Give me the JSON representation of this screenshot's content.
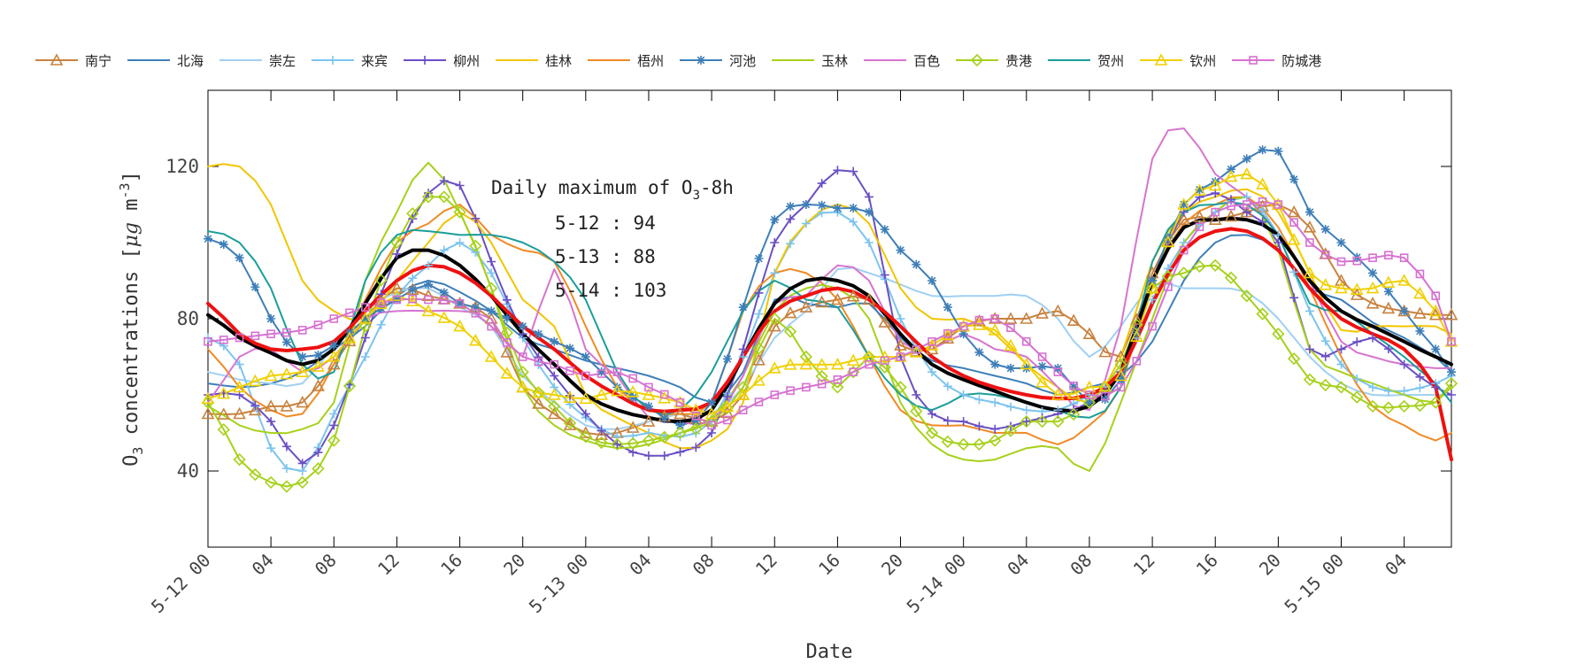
{
  "chart_data": {
    "type": "line",
    "xlabel": "Date",
    "ylabel": "O3 concentrations [μg m-3]",
    "ylabel_parts": [
      "O",
      "3",
      " concentrations [",
      "μg",
      " m",
      "-3",
      "]"
    ],
    "ylim": [
      20,
      140
    ],
    "yticks": [
      40,
      80,
      120
    ],
    "xlim": [
      0,
      79
    ],
    "x_unit": "hours from 5-12 00",
    "xticks": [
      {
        "x": 0,
        "label": "5-12 00"
      },
      {
        "x": 4,
        "label": "04"
      },
      {
        "x": 8,
        "label": "08"
      },
      {
        "x": 12,
        "label": "12"
      },
      {
        "x": 16,
        "label": "16"
      },
      {
        "x": 20,
        "label": "20"
      },
      {
        "x": 24,
        "label": "5-13 00"
      },
      {
        "x": 28,
        "label": "04"
      },
      {
        "x": 32,
        "label": "08"
      },
      {
        "x": 36,
        "label": "12"
      },
      {
        "x": 40,
        "label": "16"
      },
      {
        "x": 44,
        "label": "20"
      },
      {
        "x": 48,
        "label": "5-14 00"
      },
      {
        "x": 52,
        "label": "04"
      },
      {
        "x": 56,
        "label": "08"
      },
      {
        "x": 60,
        "label": "12"
      },
      {
        "x": 64,
        "label": "16"
      },
      {
        "x": 68,
        "label": "20"
      },
      {
        "x": 72,
        "label": "5-15 00"
      },
      {
        "x": 76,
        "label": "04"
      }
    ],
    "annotation": {
      "title": "Daily maximum of O",
      "title_sub": "3",
      "title_end": "-8h",
      "lines": [
        "5-12 : 94",
        "5-13 : 88",
        "5-14 : 103"
      ]
    },
    "x_keys": [
      0,
      2,
      4,
      6,
      8,
      10,
      12,
      14,
      16,
      18,
      20,
      22,
      24,
      26,
      28,
      30,
      32,
      34,
      36,
      38,
      40,
      42,
      44,
      46,
      48,
      50,
      52,
      54,
      56,
      58,
      60,
      62,
      64,
      66,
      68,
      70,
      72,
      74,
      76,
      78,
      79
    ],
    "series": [
      {
        "name": "南宁",
        "color": "#c8823f",
        "marker": "triangle",
        "values": [
          55,
          55,
          57,
          58,
          68,
          80,
          88,
          86,
          84,
          80,
          62,
          55,
          50,
          50,
          53,
          55,
          53,
          60,
          78,
          83,
          85,
          85,
          73,
          72,
          78,
          80,
          80,
          82,
          76,
          70,
          92,
          106,
          106,
          108,
          110,
          104,
          90,
          84,
          82,
          81,
          81
        ]
      },
      {
        "name": "北海",
        "color": "#3e7fb8",
        "marker": "none",
        "values": [
          63,
          62,
          63,
          66,
          72,
          78,
          86,
          90,
          87,
          82,
          75,
          72,
          69,
          67,
          65,
          62,
          58,
          66,
          85,
          84,
          83,
          84,
          75,
          69,
          67,
          65,
          63,
          60,
          62,
          65,
          74,
          90,
          100,
          102,
          98,
          88,
          85,
          79,
          75,
          70,
          66
        ]
      },
      {
        "name": "崇左",
        "color": "#9fd0f2",
        "marker": "none",
        "values": [
          66,
          64,
          63,
          63,
          73,
          82,
          87,
          88,
          83,
          78,
          65,
          58,
          52,
          51,
          53,
          55,
          55,
          62,
          75,
          82,
          93,
          92,
          89,
          86,
          86,
          86,
          86,
          80,
          70,
          78,
          89,
          88,
          88,
          87,
          80,
          70,
          63,
          60,
          60,
          60,
          60
        ]
      },
      {
        "name": "来宾",
        "color": "#7cc4ee",
        "marker": "plus",
        "values": [
          75,
          68,
          46,
          40,
          55,
          70,
          86,
          94,
          100,
          92,
          75,
          62,
          54,
          49,
          50,
          49,
          53,
          70,
          92,
          105,
          108,
          100,
          80,
          66,
          60,
          58,
          56,
          56,
          60,
          66,
          85,
          100,
          108,
          112,
          102,
          82,
          68,
          62,
          61,
          63,
          65
        ]
      },
      {
        "name": "柳州",
        "color": "#6a4fc4",
        "marker": "plus",
        "values": [
          60,
          60,
          53,
          42,
          52,
          75,
          97,
          113,
          115,
          95,
          76,
          65,
          55,
          47,
          44,
          45,
          50,
          72,
          100,
          110,
          119,
          112,
          70,
          55,
          53,
          51,
          53,
          55,
          58,
          66,
          90,
          108,
          113,
          108,
          100,
          72,
          72,
          75,
          68,
          62,
          60
        ]
      },
      {
        "name": "桂林",
        "color": "#f2c500",
        "marker": "none",
        "values": [
          120,
          120,
          110,
          90,
          82,
          80,
          90,
          100,
          108,
          100,
          85,
          78,
          60,
          54,
          50,
          46,
          48,
          58,
          92,
          105,
          110,
          105,
          88,
          80,
          80,
          76,
          68,
          62,
          58,
          70,
          95,
          108,
          112,
          114,
          108,
          92,
          77,
          78,
          78,
          78,
          76
        ]
      },
      {
        "name": "梧州",
        "color": "#f08a24",
        "marker": "none",
        "values": [
          72,
          62,
          56,
          55,
          68,
          85,
          100,
          105,
          110,
          102,
          98,
          95,
          78,
          62,
          56,
          55,
          58,
          82,
          92,
          92,
          85,
          70,
          56,
          52,
          52,
          50,
          50,
          47,
          52,
          62,
          90,
          105,
          110,
          112,
          104,
          88,
          70,
          57,
          52,
          48,
          50
        ]
      },
      {
        "name": "河池",
        "color": "#3e7fb8",
        "marker": "asterisk",
        "values": [
          101,
          96,
          80,
          70,
          73,
          80,
          85,
          89,
          84,
          82,
          78,
          74,
          70,
          62,
          57,
          52,
          58,
          83,
          106,
          110,
          109,
          108,
          98,
          90,
          76,
          68,
          67,
          67,
          58,
          64,
          90,
          110,
          116,
          122,
          124,
          108,
          100,
          92,
          82,
          72,
          66
        ]
      },
      {
        "name": "玉林",
        "color": "#a6d11a",
        "marker": "none",
        "values": [
          57,
          52,
          50,
          51,
          58,
          90,
          108,
          121,
          108,
          88,
          62,
          52,
          48,
          46,
          47,
          50,
          54,
          65,
          82,
          88,
          88,
          80,
          58,
          47,
          43,
          43,
          46,
          46,
          40,
          58,
          80,
          100,
          108,
          112,
          98,
          72,
          66,
          63,
          60,
          58,
          62
        ]
      },
      {
        "name": "百色",
        "color": "#d774cf",
        "marker": "none",
        "values": [
          58,
          70,
          72,
          66,
          70,
          80,
          82,
          82,
          82,
          80,
          70,
          93,
          72,
          65,
          54,
          53,
          53,
          65,
          84,
          86,
          94,
          90,
          74,
          72,
          76,
          72,
          70,
          62,
          56,
          78,
          122,
          130,
          118,
          112,
          102,
          90,
          74,
          70,
          68,
          67,
          67
        ]
      },
      {
        "name": "贵港",
        "color": "#a6d11a",
        "marker": "diamond",
        "values": [
          58,
          43,
          37,
          37,
          48,
          78,
          100,
          112,
          108,
          88,
          66,
          57,
          49,
          47,
          48,
          50,
          53,
          62,
          80,
          70,
          62,
          70,
          62,
          50,
          47,
          48,
          53,
          53,
          58,
          68,
          88,
          92,
          94,
          86,
          76,
          64,
          62,
          57,
          57,
          58,
          63
        ]
      },
      {
        "name": "贺州",
        "color": "#1a9e9a",
        "marker": "none",
        "values": [
          103,
          100,
          88,
          68,
          66,
          90,
          102,
          103,
          102,
          102,
          100,
          95,
          85,
          66,
          56,
          56,
          66,
          82,
          90,
          85,
          83,
          70,
          60,
          56,
          60,
          60,
          58,
          56,
          54,
          62,
          95,
          108,
          110,
          110,
          102,
          84,
          82,
          76,
          70,
          63,
          58
        ]
      },
      {
        "name": "钦州",
        "color": "#f0d000",
        "marker": "triangle",
        "values": [
          59,
          62,
          65,
          66,
          70,
          80,
          86,
          82,
          78,
          70,
          62,
          60,
          59,
          61,
          60,
          58,
          55,
          60,
          67,
          68,
          68,
          70,
          70,
          73,
          78,
          77,
          68,
          60,
          62,
          65,
          88,
          110,
          115,
          118,
          110,
          92,
          88,
          88,
          90,
          82,
          74
        ]
      },
      {
        "name": "防城港",
        "color": "#d771d2",
        "marker": "square",
        "values": [
          74,
          75,
          76,
          77,
          80,
          83,
          85,
          85,
          84,
          78,
          70,
          68,
          65,
          66,
          62,
          58,
          52,
          56,
          60,
          62,
          64,
          68,
          70,
          74,
          78,
          80,
          74,
          66,
          60,
          62,
          78,
          98,
          108,
          110,
          110,
          100,
          95,
          96,
          96,
          86,
          74
        ]
      },
      {
        "name": "",
        "color": "#000000",
        "marker": "none",
        "bold": true,
        "values": [
          81,
          75,
          71,
          68,
          72,
          84,
          96,
          98,
          94,
          86,
          76,
          68,
          60,
          56,
          54,
          53,
          56,
          70,
          84,
          90,
          90,
          86,
          76,
          68,
          64,
          61,
          58,
          56,
          57,
          66,
          90,
          104,
          106,
          106,
          102,
          90,
          82,
          78,
          74,
          70,
          68
        ]
      },
      {
        "name": "",
        "color": "#ee1111",
        "marker": "none",
        "bold": true,
        "values": [
          84,
          76,
          72,
          72,
          74,
          82,
          90,
          94,
          92,
          86,
          78,
          72,
          65,
          60,
          56,
          56,
          58,
          70,
          82,
          86,
          88,
          85,
          78,
          70,
          65,
          62,
          60,
          59,
          60,
          66,
          84,
          98,
          103,
          103,
          98,
          88,
          80,
          76,
          72,
          62,
          43
        ]
      }
    ]
  }
}
